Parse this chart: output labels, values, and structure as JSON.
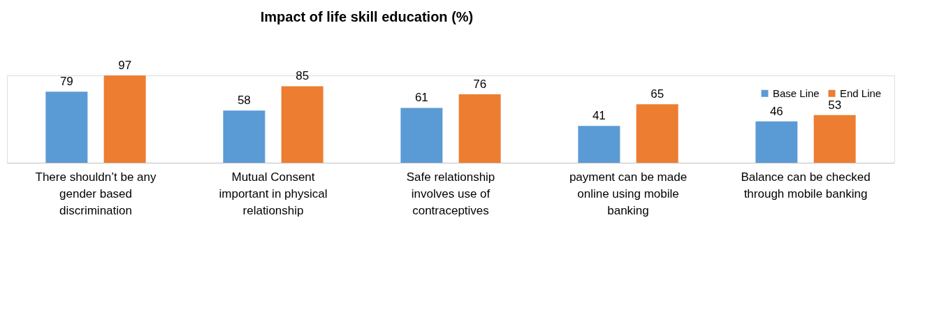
{
  "chart_data": {
    "type": "bar",
    "title": "Impact of life skill education (%)",
    "categories": [
      "There shouldn’t be any gender based discrimination",
      "Mutual Consent important in physical relationship",
      "Safe relationship involves use of contraceptives",
      "payment can be made online using mobile banking",
      "Balance can be checked through mobile banking"
    ],
    "series": [
      {
        "name": "Base Line",
        "color": "#5b9bd5",
        "values": [
          79,
          58,
          61,
          41,
          46
        ]
      },
      {
        "name": "End Line",
        "color": "#ed7d31",
        "values": [
          97,
          85,
          76,
          65,
          53
        ]
      }
    ],
    "data_labels": true,
    "legend": "top right",
    "grid": false
  }
}
